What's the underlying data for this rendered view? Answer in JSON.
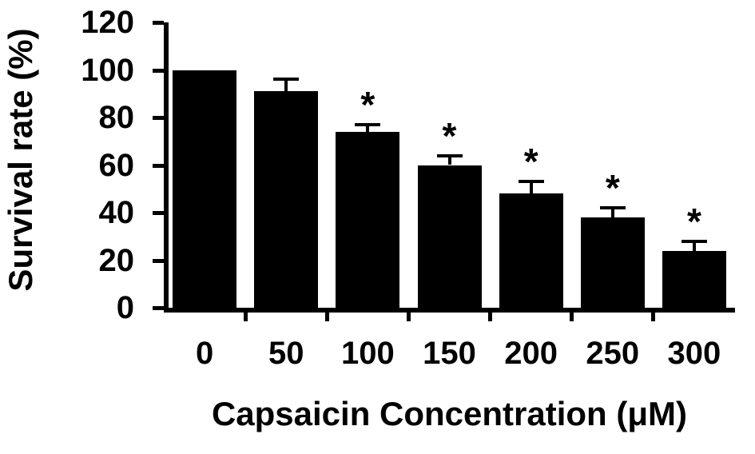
{
  "figure": {
    "background": "#ffffff",
    "ink_color": "#000000"
  },
  "chart_data": {
    "type": "bar",
    "title": "",
    "xlabel": "Capsaicin Concentration (μM)",
    "ylabel": "Survival rate (%)",
    "categories": [
      "0",
      "50",
      "100",
      "150",
      "200",
      "250",
      "300"
    ],
    "values": [
      100,
      91,
      74,
      60,
      48,
      38,
      24
    ],
    "errors": [
      0,
      5,
      3,
      4,
      5,
      4,
      4
    ],
    "significance": [
      false,
      false,
      true,
      true,
      true,
      true,
      true
    ],
    "significance_marker": "*",
    "ylim": [
      0,
      120
    ],
    "ytick_interval": 20,
    "bar_color": "#000000",
    "error_bar_style": "caps-up",
    "grid": false,
    "legend": false
  }
}
